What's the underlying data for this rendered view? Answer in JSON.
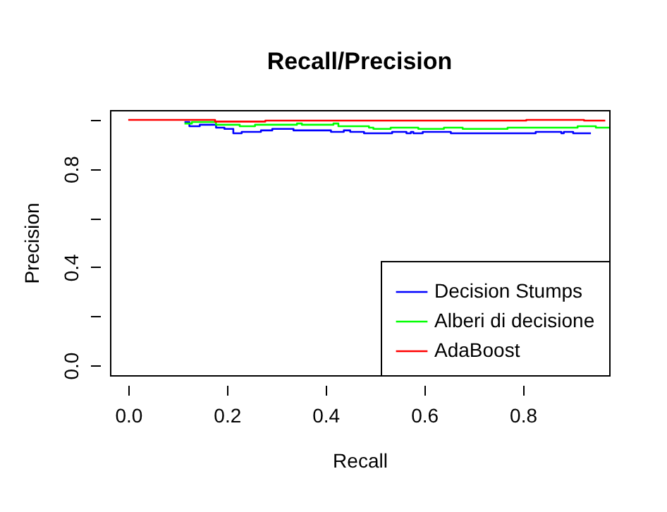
{
  "chart_data": {
    "type": "step",
    "title": "Recall/Precision",
    "xlabel": "Recall",
    "ylabel": "Precision",
    "xlim": [
      -0.037,
      0.975
    ],
    "ylim": [
      -0.04,
      1.04
    ],
    "xticks": [
      {
        "value": 0,
        "label": "0.0"
      },
      {
        "value": 0.2,
        "label": "0.2"
      },
      {
        "value": 0.4,
        "label": "0.4"
      },
      {
        "value": 0.6,
        "label": "0.6"
      },
      {
        "value": 0.8,
        "label": "0.8"
      }
    ],
    "yticks": [
      {
        "value": 0,
        "label": "0.0"
      },
      {
        "value": 0.2,
        "label": null
      },
      {
        "value": 0.4,
        "label": "0.4"
      },
      {
        "value": 0.6,
        "label": null
      },
      {
        "value": 0.8,
        "label": "0.8"
      },
      {
        "value": 1.0,
        "label": null
      }
    ],
    "legend": "bottom right",
    "grid": false,
    "series": [
      {
        "name": "Decision Stumps",
        "color": "#0000ff",
        "x": [
          0.114,
          0.124,
          0.145,
          0.178,
          0.195,
          0.213,
          0.23,
          0.269,
          0.292,
          0.335,
          0.411,
          0.437,
          0.45,
          0.478,
          0.535,
          0.564,
          0.573,
          0.578,
          0.597,
          0.654,
          0.826,
          0.878,
          0.883,
          0.902,
          0.938
        ],
        "values": [
          0.991,
          0.974,
          0.98,
          0.968,
          0.963,
          0.945,
          0.951,
          0.957,
          0.963,
          0.957,
          0.951,
          0.957,
          0.951,
          0.945,
          0.951,
          0.945,
          0.951,
          0.945,
          0.951,
          0.945,
          0.951,
          0.945,
          0.951,
          0.945,
          0.945
        ]
      },
      {
        "name": "Alberi di decisione",
        "color": "#00ff00",
        "x": [
          0.114,
          0.129,
          0.178,
          0.226,
          0.257,
          0.342,
          0.352,
          0.416,
          0.426,
          0.488,
          0.497,
          0.532,
          0.588,
          0.64,
          0.678,
          0.769,
          0.911,
          0.948,
          0.975
        ],
        "values": [
          0.985,
          0.991,
          0.98,
          0.974,
          0.98,
          0.985,
          0.98,
          0.985,
          0.974,
          0.968,
          0.963,
          0.968,
          0.963,
          0.968,
          0.963,
          0.968,
          0.974,
          0.968,
          0.968
        ]
      },
      {
        "name": "AdaBoost",
        "color": "#ff0000",
        "x": [
          0,
          0.176,
          0.278,
          0.807,
          0.924,
          0.967
        ],
        "values": [
          1.0,
          0.993,
          0.997,
          1.0,
          0.997,
          0.997
        ]
      }
    ]
  }
}
